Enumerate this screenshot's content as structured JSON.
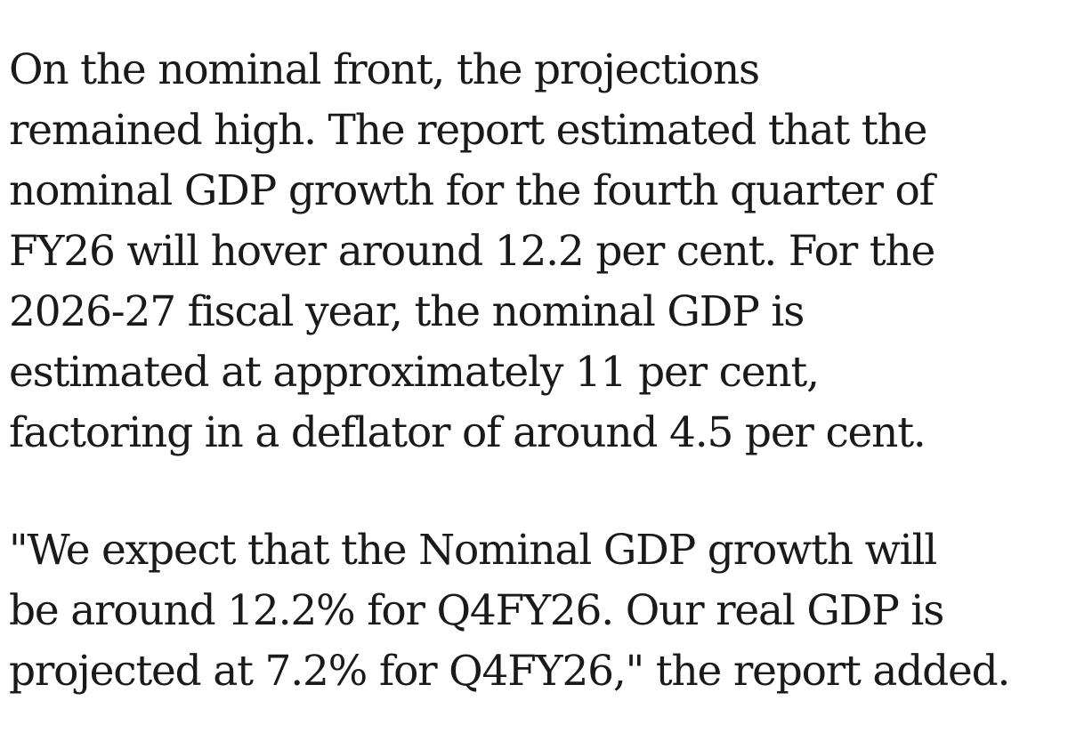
{
  "article": {
    "paragraphs": [
      {
        "lines": [
          "On the nominal front, the projections",
          "remained high. The report estimated that the",
          "nominal GDP growth for the fourth quarter of",
          "FY26 will hover around 12.2 per cent. For the",
          "2026-27 fiscal year, the nominal GDP is",
          "estimated at approximately 11 per cent,",
          "factoring in a deflator of around 4.5 per cent."
        ]
      },
      {
        "lines": [
          "\"We expect that the Nominal GDP growth will",
          "be around 12.2% for Q4FY26. Our real GDP is",
          "projected at 7.2% for Q4FY26,\" the report added."
        ]
      }
    ]
  }
}
